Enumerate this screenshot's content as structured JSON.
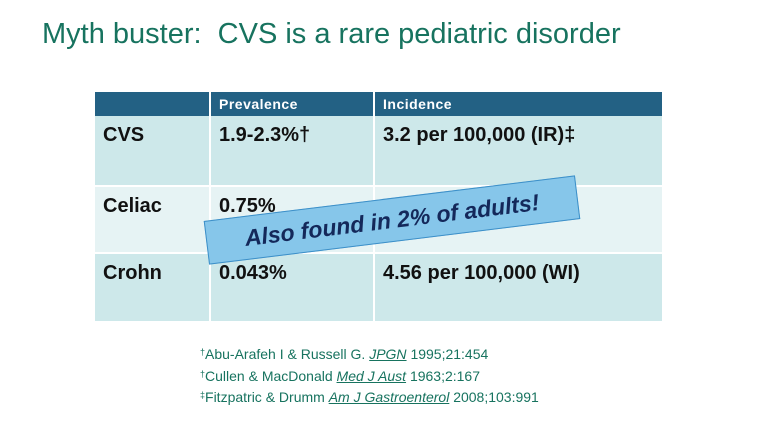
{
  "title": "Myth buster:  CVS is a rare pediatric disorder",
  "table": {
    "header": [
      "Prevalence",
      "Incidence"
    ],
    "rows": [
      [
        "CVS",
        "1.9-2.3%†",
        "3.2 per 100,000 (IR)‡"
      ],
      [
        "Celiac",
        "0.75%",
        null
      ],
      [
        "Crohn",
        "0.043%",
        "4.56 per 100,000 (WI)"
      ]
    ]
  },
  "callout": "Also found in 2% of adults!",
  "references": [
    {
      "mark": "†",
      "authors": "Abu-Arafeh I & Russell G.",
      "journal": "JPGN",
      "citation": "1995;21:454"
    },
    {
      "mark": "†",
      "authors": "Cullen & MacDonald",
      "journal": "Med J Aust",
      "citation": "1963;2:167"
    },
    {
      "mark": "‡",
      "authors": "Fitzpatric & Drumm",
      "journal": "Am J Gastroenterol",
      "citation": "2008;103:991"
    }
  ]
}
